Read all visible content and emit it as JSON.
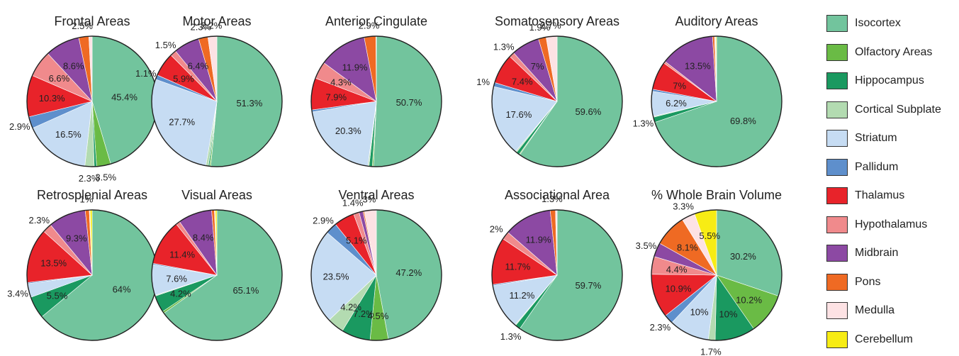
{
  "categories": [
    "Isocortex",
    "Olfactory Areas",
    "Hippocampus",
    "Cortical Subplate",
    "Striatum",
    "Pallidum",
    "Thalamus",
    "Hypothalamus",
    "Midbrain",
    "Pons",
    "Medulla",
    "Cerebellum"
  ],
  "colors": [
    "#72c49d",
    "#6abb45",
    "#1a9960",
    "#b3dbb1",
    "#c6dcf3",
    "#5e8fcc",
    "#e8232a",
    "#f08a8c",
    "#8c49a3",
    "#ef6a23",
    "#fde2e4",
    "#f7ec14"
  ],
  "chart_data": [
    {
      "type": "pie",
      "title": "Frontal Areas",
      "values": [
        45.4,
        3.5,
        0.6,
        2.3,
        16.5,
        2.9,
        10.3,
        6.6,
        8.6,
        2.5,
        0.8,
        0
      ],
      "data_labels": [
        "45.4%",
        "3.5%",
        "",
        "2.3%",
        "16.5%",
        "2.9%",
        "10.3%",
        "6.6%",
        "8.6%",
        "2.5%",
        "",
        ""
      ]
    },
    {
      "type": "pie",
      "title": "Motor Areas",
      "values": [
        51.3,
        0.3,
        0.3,
        0.6,
        27.7,
        1.1,
        5.9,
        1.5,
        6.4,
        2.3,
        2.2,
        0
      ],
      "data_labels": [
        "51.3%",
        "",
        "",
        "",
        "27.7%",
        "1.1%",
        "5.9%",
        "1.5%",
        "6.4%",
        "2.3%",
        "2.2%",
        ""
      ]
    },
    {
      "type": "pie",
      "title": "Anterior Cingulate",
      "values": [
        50.7,
        0.3,
        0.8,
        0.3,
        20.3,
        0.5,
        7.9,
        4.3,
        11.9,
        2.9,
        0.1,
        0
      ],
      "data_labels": [
        "50.7%",
        "",
        "",
        "",
        "20.3%",
        "",
        "7.9%",
        "4.3%",
        "11.9%",
        "2.9%",
        "",
        ""
      ]
    },
    {
      "type": "pie",
      "title": "Somatosensory Areas",
      "values": [
        59.6,
        0.2,
        0.8,
        0.3,
        17.6,
        1.0,
        7.4,
        1.3,
        7.0,
        1.9,
        2.7,
        0
      ],
      "data_labels": [
        "59.6%",
        "",
        "",
        "",
        "17.6%",
        "1%",
        "7.4%",
        "1.3%",
        "7%",
        "1.9%",
        "2.7%",
        ""
      ]
    },
    {
      "type": "pie",
      "title": "Auditory Areas",
      "values": [
        69.8,
        0,
        1.3,
        0.2,
        6.2,
        0.5,
        7.0,
        0.5,
        13.5,
        0.5,
        0.3,
        0.2
      ],
      "data_labels": [
        "69.8%",
        "",
        "1.3%",
        "",
        "6.2%",
        "",
        "7%",
        "",
        "13.5%",
        "",
        "",
        ""
      ]
    },
    {
      "type": "pie",
      "title": "Retrosplenial Areas",
      "values": [
        64.0,
        0,
        5.5,
        0,
        3.4,
        0.3,
        13.5,
        2.3,
        9.3,
        1.0,
        0.2,
        0.5
      ],
      "data_labels": [
        "64%",
        "",
        "5.5%",
        "",
        "3.4%",
        "",
        "13.5%",
        "2.3%",
        "9.3%",
        "1%",
        "",
        ""
      ]
    },
    {
      "type": "pie",
      "title": "Visual Areas",
      "values": [
        65.1,
        0.5,
        4.2,
        0.2,
        7.6,
        0.3,
        11.4,
        1.0,
        8.4,
        0.7,
        0.2,
        0.4
      ],
      "data_labels": [
        "65.1%",
        "",
        "4.2%",
        "",
        "7.6%",
        "",
        "11.4%",
        "",
        "8.4%",
        "",
        "",
        ""
      ]
    },
    {
      "type": "pie",
      "title": "Ventral Areas",
      "values": [
        47.2,
        4.5,
        7.2,
        4.2,
        23.5,
        2.9,
        5.1,
        1.4,
        1.0,
        0.3,
        3.0,
        0
      ],
      "data_labels": [
        "47.2%",
        "4.5%",
        "7.2%",
        "4.2%",
        "23.5%",
        "2.9%",
        "5.1%",
        "1.4%",
        "",
        "",
        "3%",
        ""
      ]
    },
    {
      "type": "pie",
      "title": "Associational Area",
      "values": [
        59.7,
        0,
        1.3,
        0.2,
        11.2,
        0.3,
        11.7,
        2.0,
        11.9,
        1.3,
        0.4,
        0
      ],
      "data_labels": [
        "59.7%",
        "",
        "1.3%",
        "",
        "11.2%",
        "",
        "11.7%",
        "2%",
        "11.9%",
        "1.3%",
        "",
        ""
      ]
    },
    {
      "type": "pie",
      "title": "% Whole Brain Volume",
      "values": [
        30.2,
        10.2,
        10.0,
        1.7,
        10.0,
        2.3,
        10.9,
        4.4,
        3.5,
        8.1,
        3.3,
        5.5
      ],
      "data_labels": [
        "30.2%",
        "10.2%",
        "10%",
        "1.7%",
        "10%",
        "2.3%",
        "10.9%",
        "4.4%",
        "3.5%",
        "8.1%",
        "3.3%",
        "5.5%"
      ]
    }
  ]
}
